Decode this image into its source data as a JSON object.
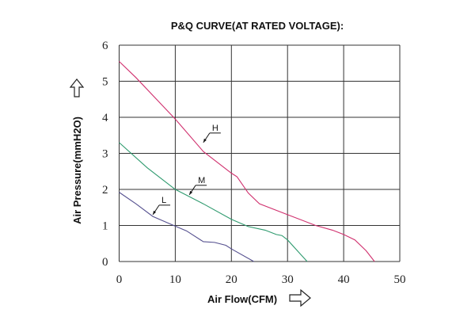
{
  "chart_data": {
    "type": "line",
    "title": "P&Q CURVE(AT RATED VOLTAGE):",
    "xlabel": "Air Flow(CFM)",
    "ylabel": "Air Pressure(mmH2O)",
    "xlim": [
      0,
      50
    ],
    "ylim": [
      0,
      6
    ],
    "xticks": [
      "0",
      "10",
      "20",
      "30",
      "40",
      "50"
    ],
    "yticks": [
      "0",
      "1",
      "2",
      "3",
      "4",
      "5",
      "6"
    ],
    "grid": true,
    "series": [
      {
        "name": "H",
        "color": "#d0306e",
        "label_at": [
          15,
          3.3
        ],
        "x": [
          0,
          3,
          10,
          15,
          20,
          21,
          23,
          25,
          30,
          35,
          38,
          40,
          42,
          44,
          45.5
        ],
        "y": [
          5.55,
          5.1,
          3.95,
          3.05,
          2.45,
          2.35,
          1.9,
          1.6,
          1.3,
          1.0,
          0.87,
          0.75,
          0.6,
          0.3,
          0
        ]
      },
      {
        "name": "M",
        "color": "#2e9a6e",
        "label_at": [
          12.5,
          1.85
        ],
        "x": [
          0,
          5,
          10,
          11,
          15,
          20,
          23,
          26,
          28,
          29,
          30,
          33.5
        ],
        "y": [
          3.3,
          2.6,
          2.0,
          1.92,
          1.6,
          1.17,
          0.97,
          0.87,
          0.75,
          0.72,
          0.6,
          0
        ]
      },
      {
        "name": "L",
        "color": "#55508f",
        "label_at": [
          6,
          1.3
        ],
        "x": [
          0,
          3,
          6,
          10,
          12,
          15,
          17,
          19,
          20,
          24
        ],
        "y": [
          1.92,
          1.6,
          1.25,
          0.98,
          0.85,
          0.55,
          0.53,
          0.45,
          0.35,
          0
        ]
      }
    ]
  }
}
